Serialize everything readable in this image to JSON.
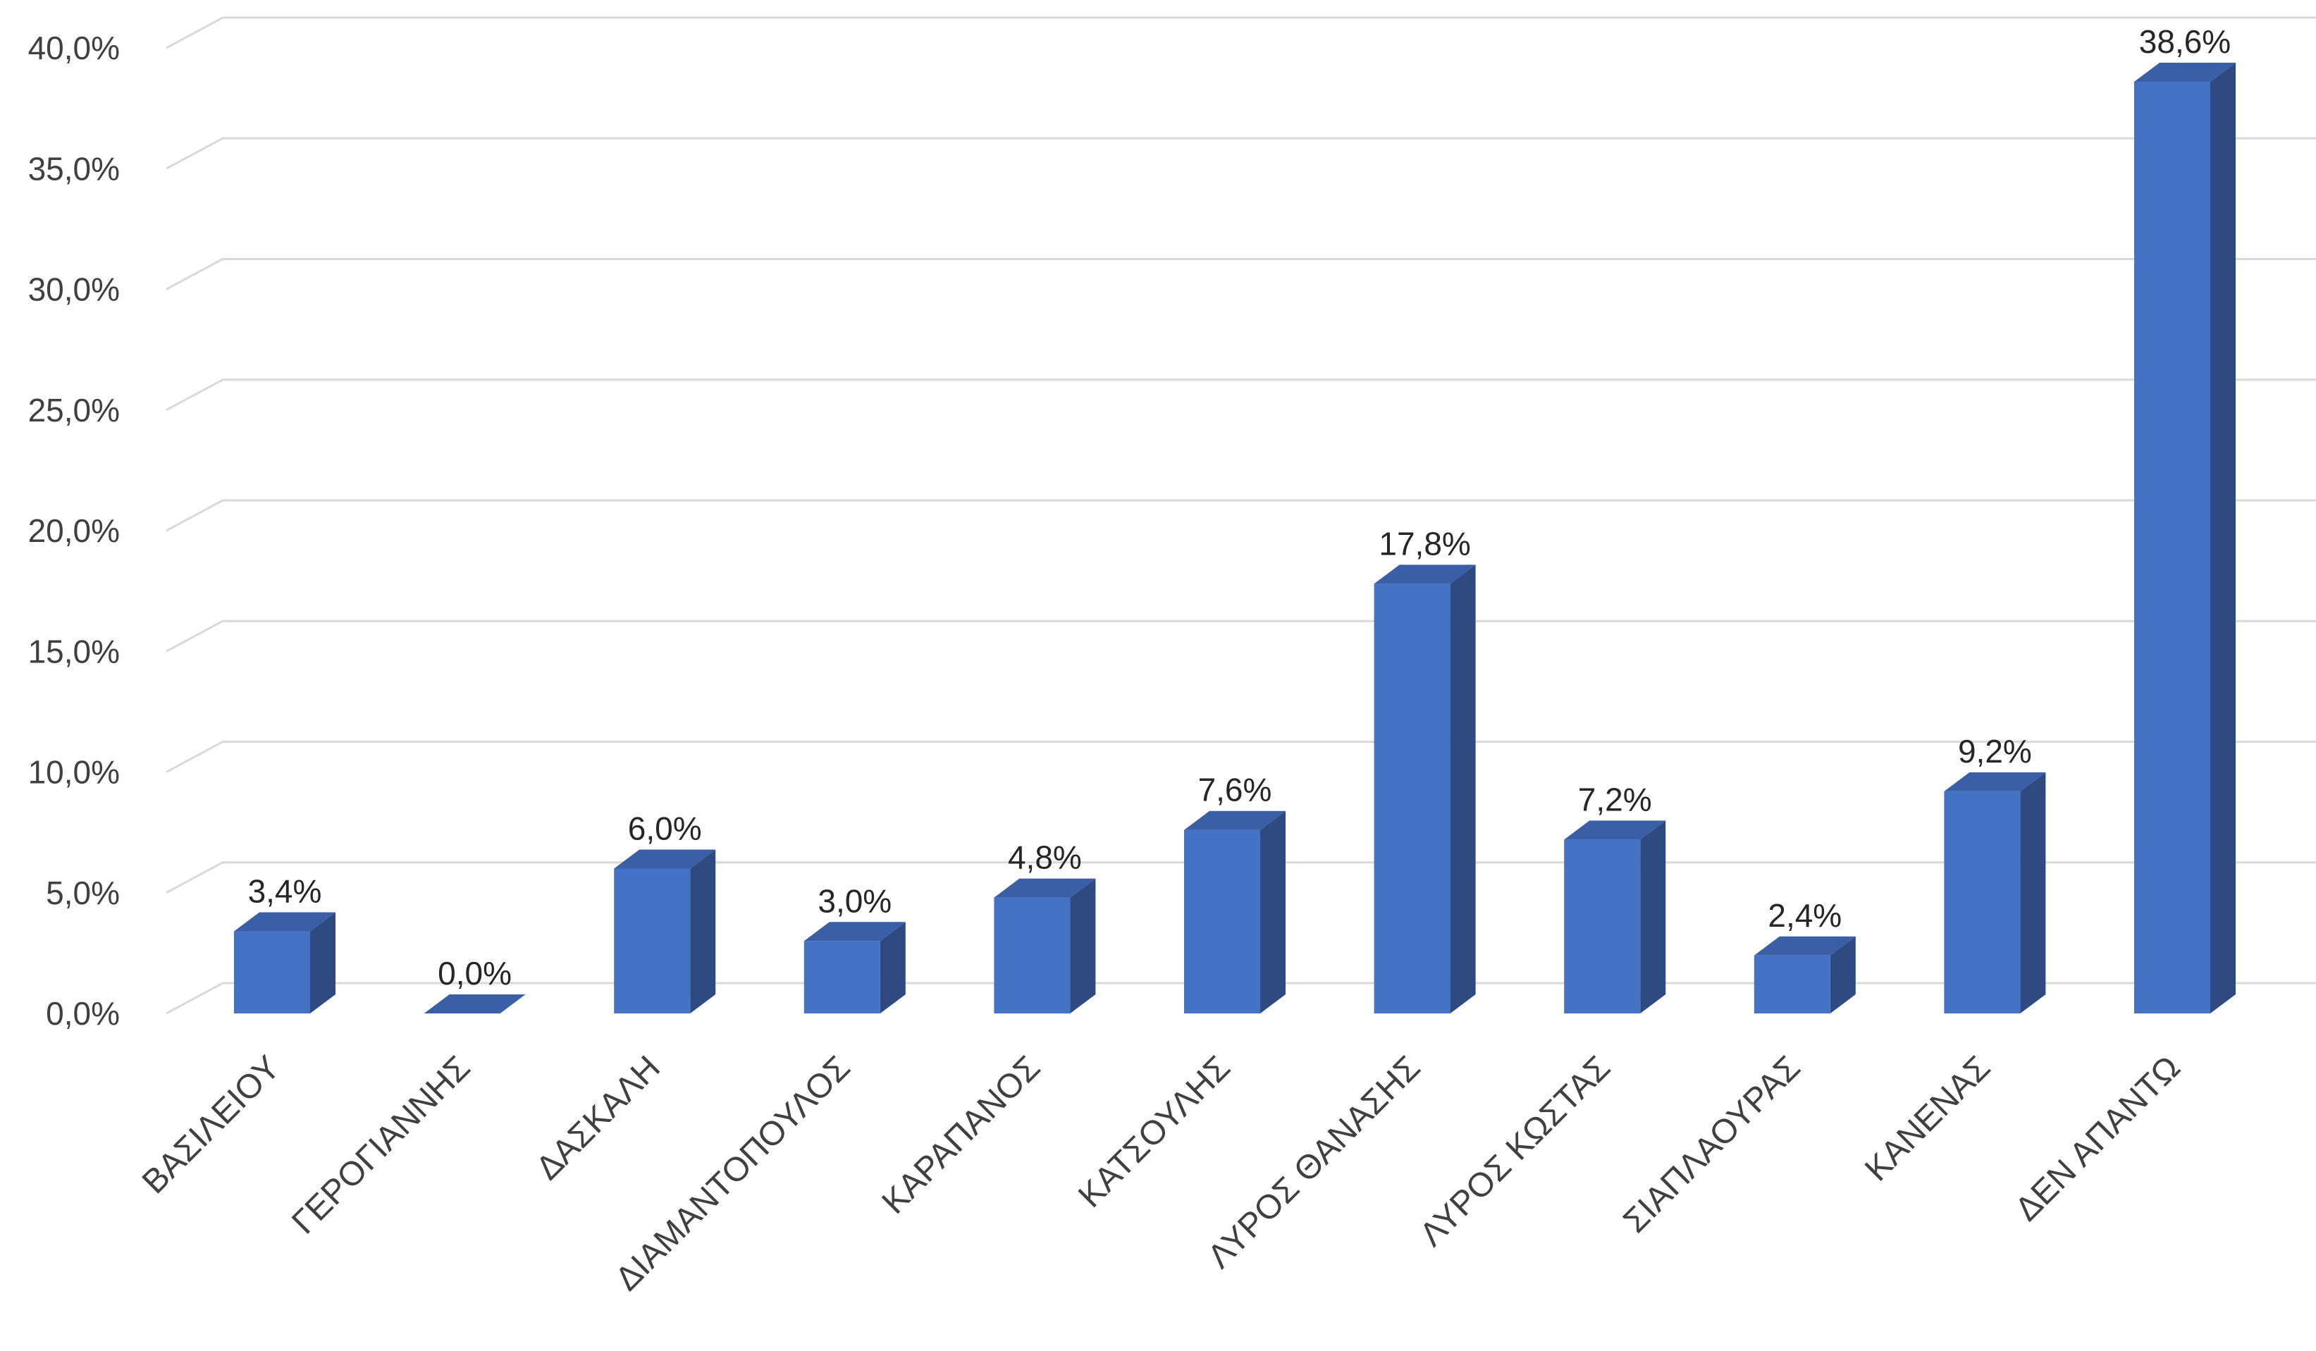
{
  "chart_data": {
    "type": "bar",
    "style": "3d-column",
    "title": "",
    "xlabel": "",
    "ylabel": "",
    "categories": [
      "ΒΑΣΙΛΕΙΟΥ",
      "ΓΕΡΟΓΙΑΝΝΗΣ",
      "ΔΑΣΚΑΛΗ",
      "ΔΙΑΜΑΝΤΟΠΟΥΛΟΣ",
      "ΚΑΡΑΠΑΝΟΣ",
      "ΚΑΤΣΟΥΛΗΣ",
      "ΛΥΡΟΣ ΘΑΝΑΣΗΣ",
      "ΛΥΡΟΣ ΚΩΣΤΑΣ",
      "ΣΙΑΠΛΑΟΥΡΑΣ",
      "ΚΑΝΕΝΑΣ",
      "ΔΕΝ ΑΠΑΝΤΩ"
    ],
    "values": [
      3.4,
      0.0,
      6.0,
      3.0,
      4.8,
      7.6,
      17.8,
      7.2,
      2.4,
      9.2,
      38.6
    ],
    "data_labels": [
      "3,4%",
      "0,0%",
      "6,0%",
      "3,0%",
      "4,8%",
      "7,6%",
      "17,8%",
      "7,2%",
      "2,4%",
      "9,2%",
      "38,6%"
    ],
    "y_ticks": [
      "0,0%",
      "5,0%",
      "10,0%",
      "15,0%",
      "20,0%",
      "25,0%",
      "30,0%",
      "35,0%",
      "40,0%"
    ],
    "ylim": [
      0,
      40
    ],
    "grid": true,
    "legend": "none",
    "colors": {
      "bar_front": "#4472C4",
      "bar_side": "#2E4A80",
      "bar_top": "#3A5FA6",
      "grid": "#D9D9D9"
    }
  }
}
